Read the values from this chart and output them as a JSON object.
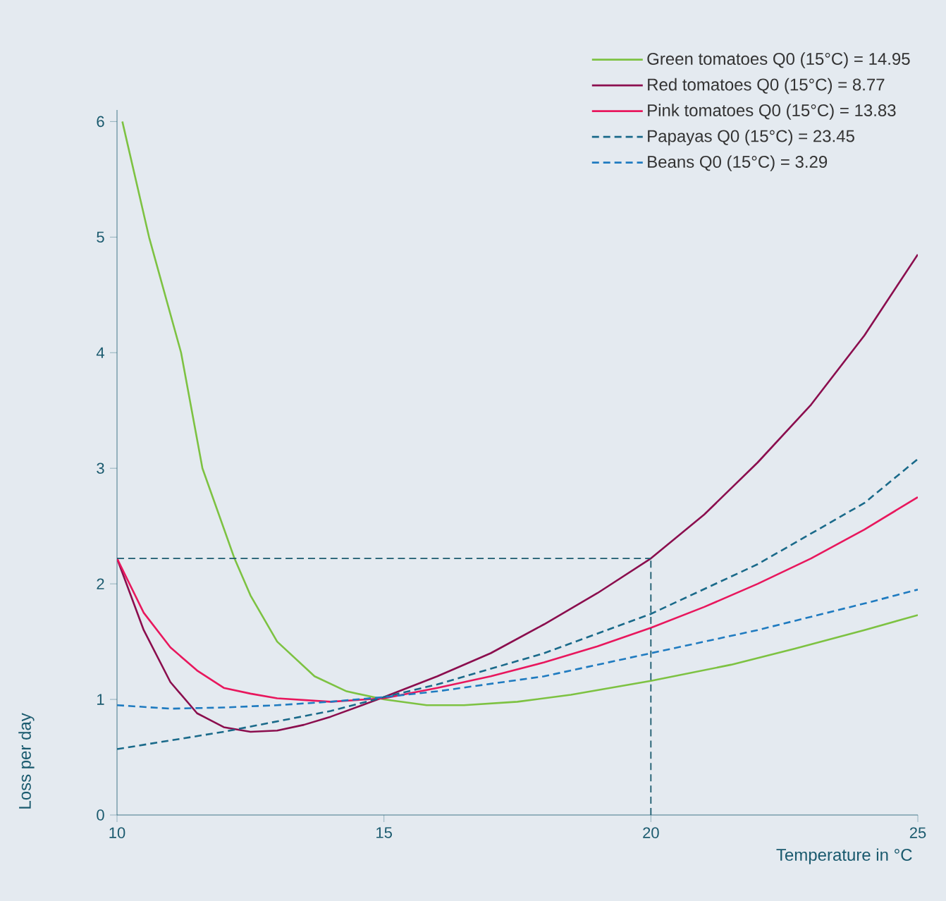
{
  "chart_data": {
    "type": "line",
    "xlabel": "Temperature in °C",
    "ylabel": "Loss per day",
    "xlim": [
      10,
      25
    ],
    "ylim": [
      0,
      6.1
    ],
    "xticks": [
      10,
      15,
      20,
      25
    ],
    "yticks": [
      0,
      1,
      2,
      3,
      4,
      5,
      6
    ],
    "legend": "top right",
    "line_style": "solid",
    "grid": false,
    "series": [
      {
        "name": "Green tomatoes Q0 (15°C) = 14.95",
        "color": "#7dc242",
        "x": [
          10.1,
          10.6,
          11.2,
          11.6,
          12.2,
          12.5,
          13.0,
          13.7,
          14.3,
          15,
          15.8,
          16.5,
          17.5,
          18.5,
          20,
          21.5,
          22.7,
          24,
          25
        ],
        "values": [
          6.0,
          5.0,
          4.0,
          3.0,
          2.22,
          1.9,
          1.5,
          1.2,
          1.07,
          1.0,
          0.95,
          0.95,
          0.98,
          1.04,
          1.16,
          1.3,
          1.44,
          1.6,
          1.73
        ]
      },
      {
        "name": "Red tomatoes Q0 (15°C) = 8.77",
        "color": "#8b0e4e",
        "x": [
          10,
          10.5,
          11,
          11.5,
          12,
          12.5,
          13,
          13.5,
          14,
          15,
          16,
          17,
          18,
          19,
          20,
          21,
          22,
          23,
          24,
          25
        ],
        "values": [
          2.22,
          1.6,
          1.15,
          0.88,
          0.76,
          0.72,
          0.73,
          0.78,
          0.85,
          1.02,
          1.2,
          1.4,
          1.65,
          1.92,
          2.22,
          2.6,
          3.05,
          3.55,
          4.15,
          4.85
        ]
      },
      {
        "name": "Pink tomatoes Q0 (15°C) = 13.83",
        "color": "#e8175d",
        "x": [
          10,
          10.5,
          11,
          11.5,
          12,
          12.5,
          13,
          14,
          15,
          16,
          17,
          18,
          19,
          20,
          21,
          22,
          23,
          24,
          25
        ],
        "values": [
          2.22,
          1.75,
          1.45,
          1.25,
          1.1,
          1.05,
          1.01,
          0.98,
          1.01,
          1.1,
          1.2,
          1.32,
          1.46,
          1.62,
          1.8,
          2.0,
          2.22,
          2.47,
          2.75
        ]
      },
      {
        "name": "Papayas Q0 (15°C) = 23.45",
        "color": "#1a6a8a",
        "line_style": "dashed",
        "x": [
          10,
          12,
          14,
          15,
          16,
          18,
          20,
          22,
          24,
          25
        ],
        "values": [
          0.57,
          0.72,
          0.9,
          1.02,
          1.13,
          1.4,
          1.74,
          2.17,
          2.7,
          3.08
        ]
      },
      {
        "name": "Beans Q0 (15°C) = 3.29",
        "color": "#1f7bc0",
        "line_style": "dashed",
        "x": [
          10,
          11,
          12,
          13,
          14,
          15,
          16,
          18,
          20,
          22,
          24,
          25
        ],
        "values": [
          0.95,
          0.92,
          0.93,
          0.95,
          0.98,
          1.02,
          1.07,
          1.2,
          1.4,
          1.6,
          1.83,
          1.95
        ]
      }
    ],
    "ref_lines": [
      {
        "axis": "y",
        "value": 2.22,
        "color": "#1a5a6e",
        "line_style": "dashed"
      },
      {
        "axis": "x",
        "value": 20,
        "color": "#1a5a6e",
        "line_style": "dashed"
      }
    ]
  }
}
